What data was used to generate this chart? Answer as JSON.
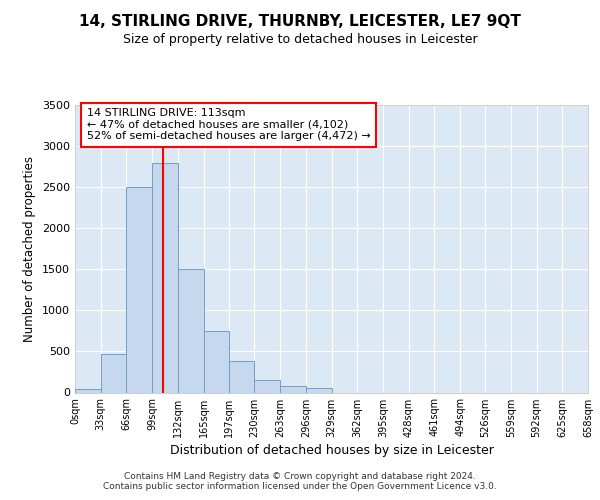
{
  "title": "14, STIRLING DRIVE, THURNBY, LEICESTER, LE7 9QT",
  "subtitle": "Size of property relative to detached houses in Leicester",
  "xlabel": "Distribution of detached houses by size in Leicester",
  "ylabel": "Number of detached properties",
  "bar_color": "#c5d8ee",
  "bar_edge_color": "#6fa0c8",
  "background_color": "#dde8f5",
  "annotation_text": "14 STIRLING DRIVE: 113sqm\n← 47% of detached houses are smaller (4,102)\n52% of semi-detached houses are larger (4,472) →",
  "vline_x": 113,
  "footer_line1": "Contains HM Land Registry data © Crown copyright and database right 2024.",
  "footer_line2": "Contains public sector information licensed under the Open Government Licence v3.0.",
  "bin_edges": [
    0,
    33,
    66,
    99,
    132,
    165,
    197,
    230,
    263,
    296,
    329,
    362,
    395,
    428,
    461,
    494,
    526,
    559,
    592,
    625,
    658
  ],
  "bar_heights": [
    38,
    470,
    2500,
    2800,
    1500,
    750,
    380,
    150,
    75,
    50,
    0,
    0,
    0,
    0,
    0,
    0,
    0,
    0,
    0,
    0
  ],
  "ylim": [
    0,
    3500
  ],
  "yticks": [
    0,
    500,
    1000,
    1500,
    2000,
    2500,
    3000,
    3500
  ]
}
